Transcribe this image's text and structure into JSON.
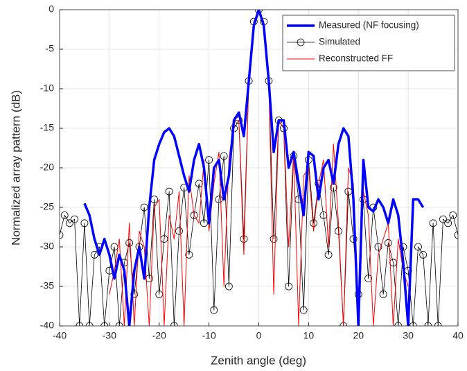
{
  "chart_data": {
    "type": "line",
    "xlabel": "Zenith angle (deg)",
    "ylabel": "Normalized array pattern (dB)",
    "xlim": [
      -40,
      40
    ],
    "ylim": [
      -40,
      0
    ],
    "xticks": [
      -40,
      -30,
      -20,
      -10,
      0,
      10,
      20,
      30,
      40
    ],
    "yticks": [
      -40,
      -35,
      -30,
      -25,
      -20,
      -15,
      -10,
      -5,
      0
    ],
    "grid": true,
    "legend": "top-right",
    "x": [
      -40,
      -39,
      -38,
      -37,
      -36,
      -35,
      -34,
      -33,
      -32,
      -31,
      -30,
      -29,
      -28,
      -27,
      -26,
      -25,
      -24,
      -23,
      -22,
      -21,
      -20,
      -19,
      -18,
      -17,
      -16,
      -15,
      -14,
      -13,
      -12,
      -11,
      -10,
      -9,
      -8,
      -7,
      -6,
      -5,
      -4,
      -3,
      -2,
      -1,
      0,
      1,
      2,
      3,
      4,
      5,
      6,
      7,
      8,
      9,
      10,
      11,
      12,
      13,
      14,
      15,
      16,
      17,
      18,
      19,
      20,
      21,
      22,
      23,
      24,
      25,
      26,
      27,
      28,
      29,
      30,
      31,
      32,
      33,
      34,
      35,
      36,
      37,
      38,
      39,
      40
    ],
    "series": [
      {
        "name": "Measured (NF focusing)",
        "color": "#0000ff",
        "width": 3.5,
        "marker": null,
        "values": [
          null,
          null,
          null,
          null,
          null,
          -24.5,
          -26,
          -29,
          -31,
          -29,
          -31,
          -34,
          -31,
          -33,
          -40,
          -33,
          -30,
          -34,
          -25,
          -19,
          -17,
          -15.5,
          -15,
          -16,
          -18.5,
          -21,
          -23,
          -19,
          -17,
          -20,
          -27,
          -20,
          -19,
          -24,
          -21,
          -14,
          -13,
          -16,
          -9,
          -2,
          0,
          -2,
          -9,
          -18,
          -14,
          -14,
          -20,
          -18,
          -22,
          -26,
          -18,
          -18.5,
          -24,
          -20,
          -19,
          -22,
          -17,
          -15,
          -16,
          -24,
          -40,
          -19,
          -25,
          -25.5,
          -24,
          -25,
          -27,
          -24,
          -26,
          -32,
          -40,
          -24,
          -24,
          -25,
          null,
          null,
          null,
          null,
          null,
          null,
          null
        ]
      },
      {
        "name": "Simulated",
        "color": "#000000",
        "width": 0.8,
        "marker": "circle",
        "values": [
          -28.5,
          -26,
          -27,
          -26.5,
          -40,
          -27,
          -40,
          -31,
          -30,
          -40,
          -33,
          -30,
          -40,
          -32,
          -29.5,
          -36,
          -30,
          -25,
          -34,
          -24,
          -36,
          -29,
          -23,
          -40,
          -28,
          -22.5,
          -31,
          -26,
          -22,
          -27,
          -19,
          -38,
          -24,
          -18.5,
          -35,
          -15,
          -14,
          -29,
          -9,
          -1.5,
          0,
          -1.5,
          -9,
          -29,
          -14,
          -15,
          -35,
          -18.5,
          -24,
          -38,
          -19,
          -27,
          -22,
          -26,
          -31,
          -22.5,
          -28,
          -40,
          -23,
          -29,
          -36,
          -24,
          -34,
          -25,
          -30,
          -36,
          -29.5,
          -32,
          -40,
          -30,
          -33,
          -40,
          -30,
          -31,
          -40,
          -27,
          -40,
          -26.5,
          -27,
          -26,
          -28.5
        ]
      },
      {
        "name": "Reconstructed FF",
        "color": "#ff0000",
        "width": 1,
        "marker": null,
        "values": [
          null,
          null,
          null,
          null,
          null,
          null,
          null,
          null,
          null,
          null,
          -36,
          -33,
          -29,
          -40,
          -27,
          -40,
          -28,
          -30,
          -40,
          -25,
          -24,
          -40,
          -26,
          -29,
          -23,
          -40,
          -21,
          -26,
          -27,
          -19,
          -28,
          -22,
          -18,
          -35,
          -19,
          -14,
          -14,
          -31,
          -9,
          -1.5,
          0,
          -1.5,
          -9,
          -36,
          -14,
          -15,
          -30,
          -18,
          -40,
          -21,
          -20,
          -28,
          -22,
          -19,
          -30,
          -17,
          -27,
          -40,
          -20,
          -22,
          -40,
          -23,
          -26,
          -40,
          -31,
          -29,
          -27,
          -40,
          -29,
          -33,
          -35,
          null,
          null,
          null,
          null,
          null,
          null,
          null,
          null,
          null,
          null
        ]
      }
    ]
  }
}
